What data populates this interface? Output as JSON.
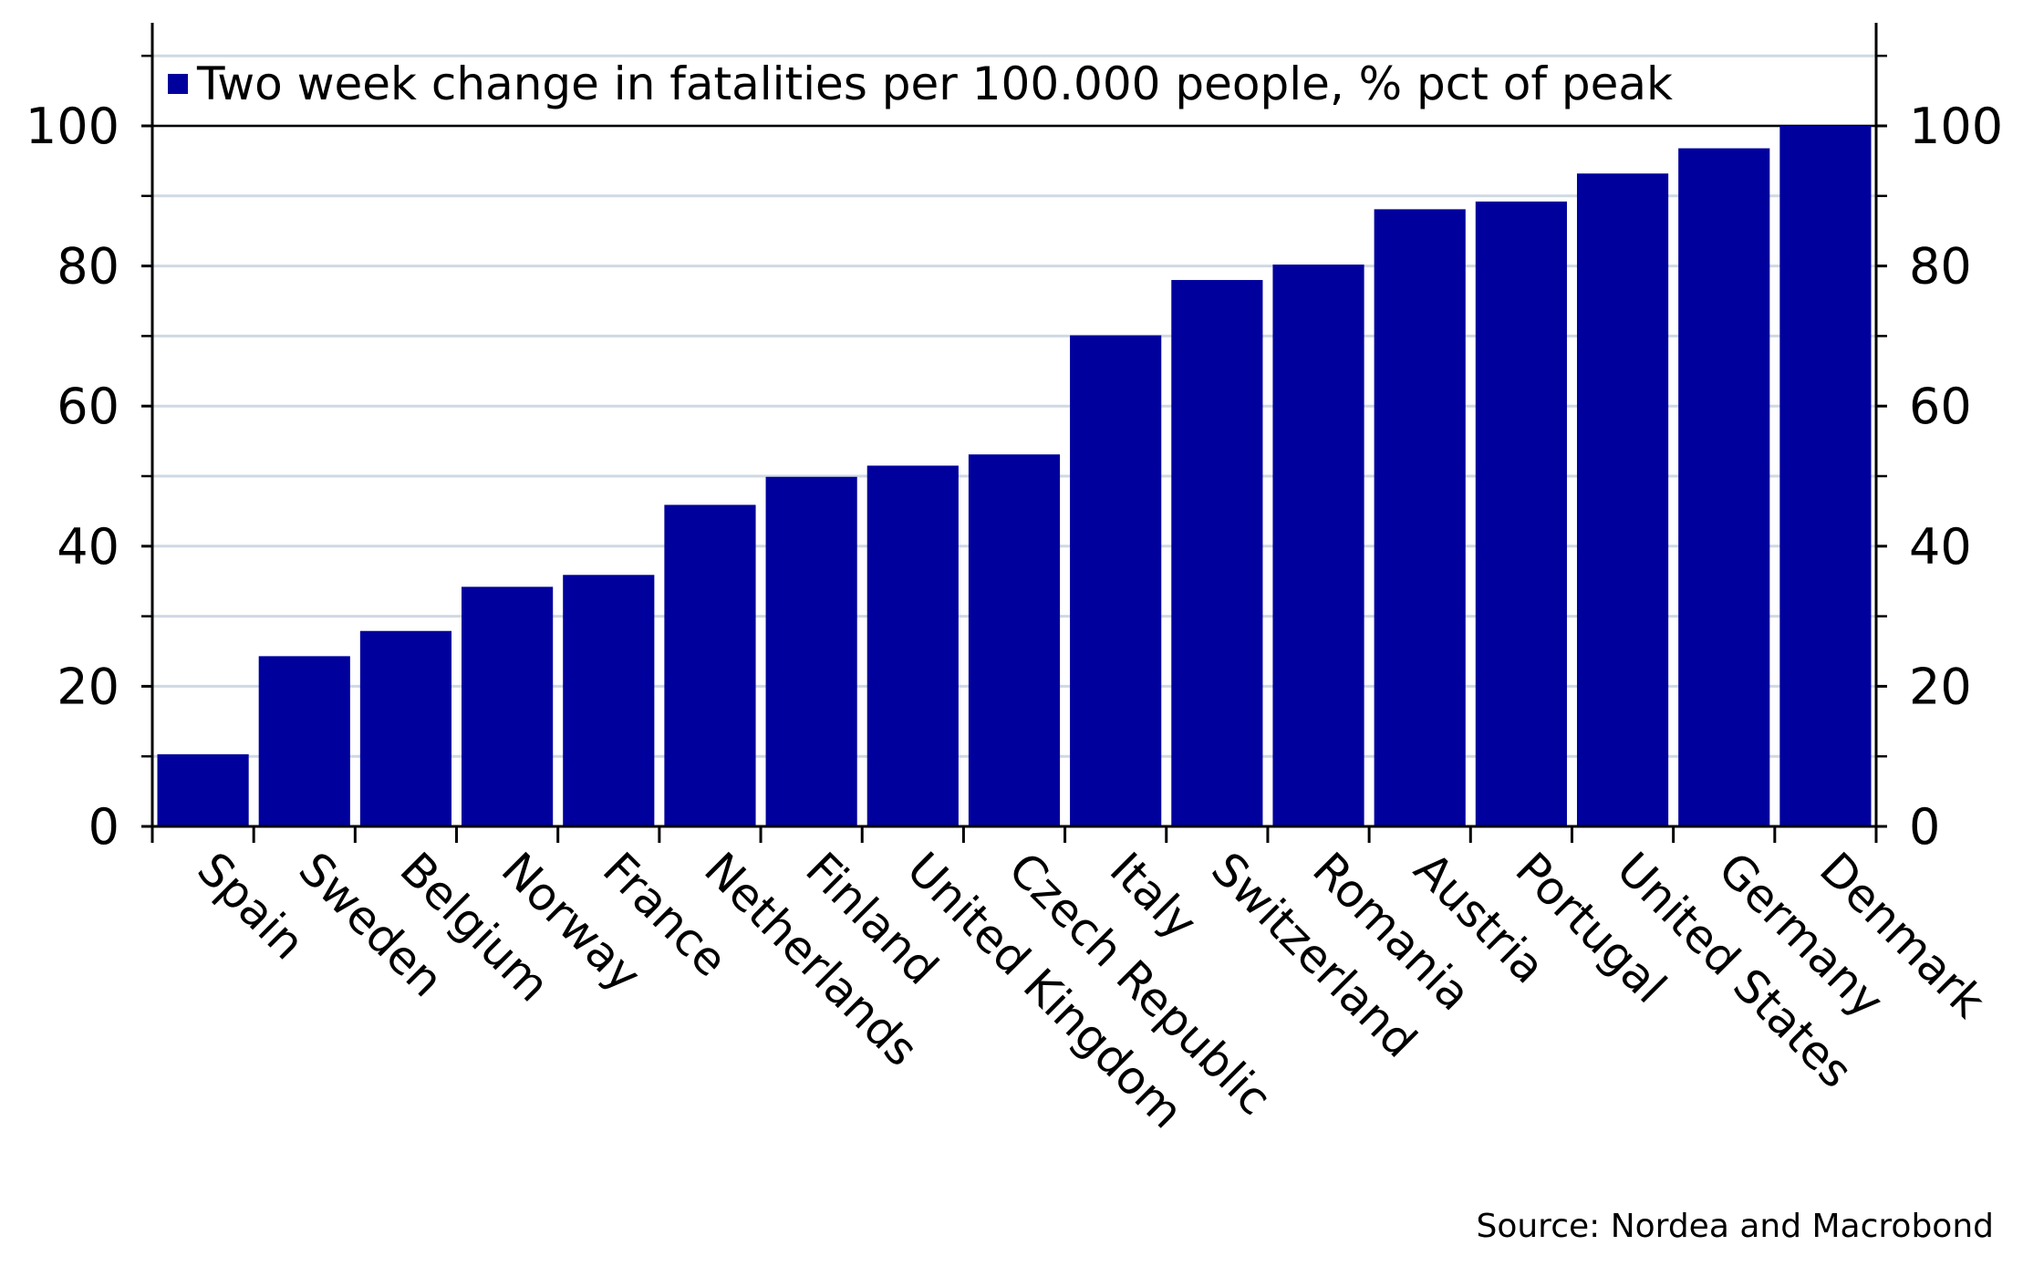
{
  "chart_data": {
    "type": "bar",
    "title": "",
    "xlabel": "",
    "ylabel": "",
    "legend": {
      "label": "Two week change in fatalities per 100.000 people, % pct of peak",
      "placement": "top-left"
    },
    "categories": [
      "Spain",
      "Sweden",
      "Belgium",
      "Norway",
      "France",
      "Netherlands",
      "Finland",
      "United Kingdom",
      "Czech Republic",
      "Italy",
      "Switzerland",
      "Romania",
      "Austria",
      "Portugal",
      "United States",
      "Germany",
      "Denmark"
    ],
    "series": [
      {
        "name": "Two week change in fatalities per 100.000 people, % pct of peak",
        "values": [
          10.3,
          24.3,
          27.9,
          34.2,
          35.9,
          45.9,
          49.9,
          51.5,
          53.1,
          70.1,
          78.0,
          80.2,
          88.1,
          89.2,
          93.2,
          96.8,
          100.0
        ]
      }
    ],
    "ylim": [
      0,
      112
    ],
    "yticks_major": [
      0,
      20,
      40,
      60,
      80,
      100
    ],
    "yticks_minor": [
      10,
      30,
      50,
      70,
      90,
      110
    ],
    "grid": true,
    "secondary_y_axis": true,
    "colors": {
      "bar": "#00009c",
      "grid": "#cfd9e3",
      "axis": "#000000"
    }
  },
  "source": "Source: Nordea and Macrobond"
}
